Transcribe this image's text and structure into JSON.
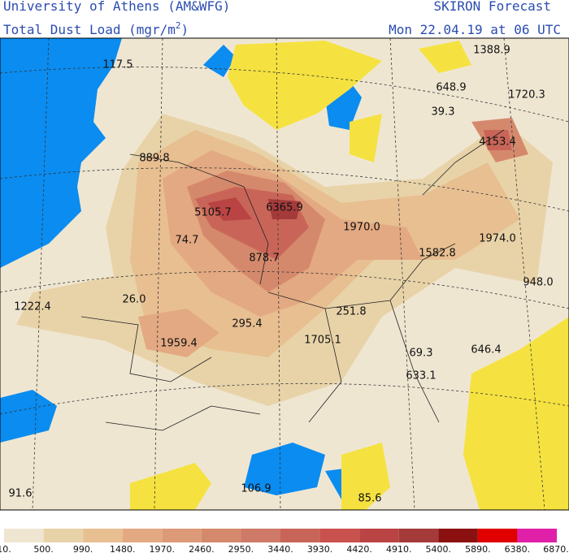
{
  "header": {
    "institution": "University of Athens (AM&WFG)",
    "forecast": "SKIRON Forecast",
    "field": "Total Dust Load (mgr/m",
    "field_sup": "2",
    "field_end": ")",
    "valid_time": "Mon 22.04.19 at 06 UTC"
  },
  "map": {
    "labels": [
      "117.5",
      "1388.9",
      "648.9",
      "1720.3",
      "39.3",
      "4153.4",
      "889.8",
      "5105.7",
      "6365.9",
      "1970.0",
      "74.7",
      "1974.0",
      "1582.8",
      "878.7",
      "948.0",
      "26.0",
      "1222.4",
      "251.8",
      "295.4",
      "1959.4",
      "1705.1",
      "69.3",
      "646.4",
      "633.1",
      "91.6",
      "106.9",
      "85.6"
    ]
  },
  "legend": {
    "labels": [
      "10.",
      "500.",
      "990.",
      "1480.",
      "1970.",
      "2460.",
      "2950.",
      "3440.",
      "3930.",
      "4420.",
      "4910.",
      "5400.",
      "5890.",
      "6380.",
      "6870."
    ],
    "colors": [
      "#efe6d2",
      "#e8d3a8",
      "#e8bf91",
      "#e3a982",
      "#dc9a78",
      "#d5896c",
      "#cf7a68",
      "#c96558",
      "#c9514e",
      "#ba4443",
      "#a53a3a",
      "#8b1010",
      "#e00000",
      "#e020a8"
    ]
  }
}
